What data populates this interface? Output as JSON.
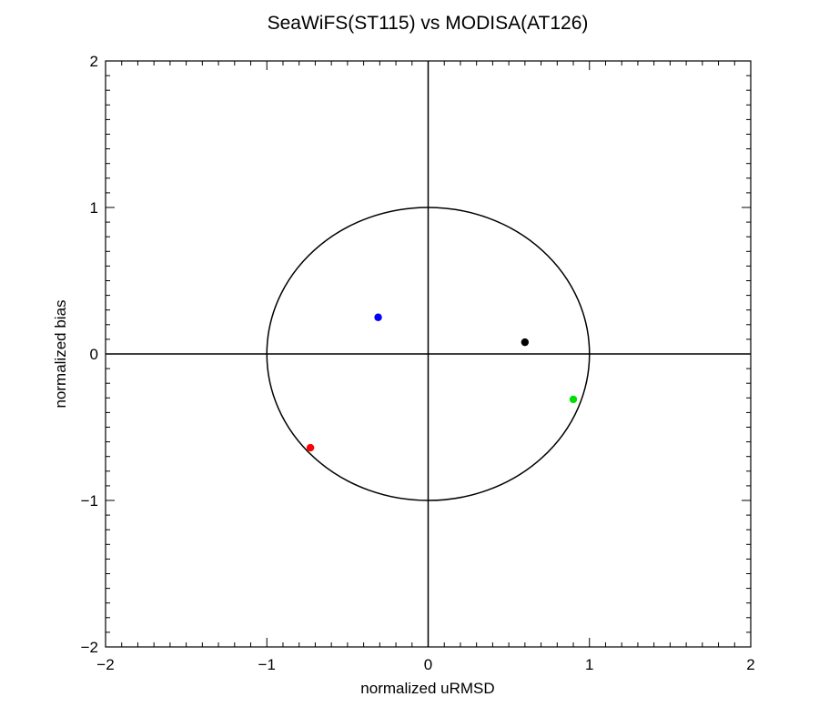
{
  "chart_data": {
    "type": "scatter",
    "title": "SeaWiFS(ST115) vs MODISA(AT126)",
    "xlabel": "normalized uRMSD",
    "ylabel": "normalized bias",
    "xlim": [
      -2,
      2
    ],
    "ylim": [
      -2,
      2
    ],
    "x_major_ticks": [
      -2,
      -1,
      0,
      1,
      2
    ],
    "y_major_ticks": [
      -2,
      -1,
      0,
      1,
      2
    ],
    "x_tick_labels": [
      "−2",
      "−1",
      "0",
      "1",
      "2"
    ],
    "y_tick_labels": [
      "−2",
      "−1",
      "0",
      "1",
      "2"
    ],
    "minor_tick_step": 0.1,
    "grid": false,
    "reference_circle": {
      "center": [
        0,
        0
      ],
      "radius": 1
    },
    "reference_lines": {
      "x": 0,
      "y": 0
    },
    "points": [
      {
        "x": -0.31,
        "y": 0.25,
        "color": "#0000ff"
      },
      {
        "x": 0.6,
        "y": 0.08,
        "color": "#000000"
      },
      {
        "x": 0.9,
        "y": -0.31,
        "color": "#00e000"
      },
      {
        "x": -0.73,
        "y": -0.64,
        "color": "#ff0000"
      }
    ]
  }
}
